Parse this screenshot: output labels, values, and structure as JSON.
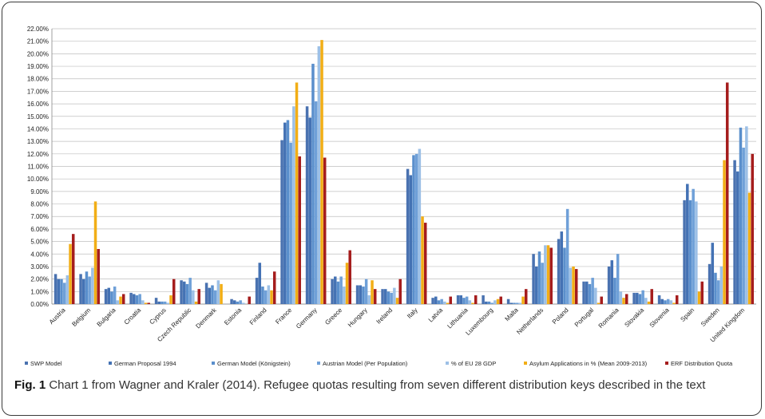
{
  "caption": {
    "label": "Fig. 1",
    "text": "Chart 1 from Wagner and Kraler (2014). Refugee quotas resulting from seven different distribution keys described in the text"
  },
  "colors": {
    "SWP Model": "#4a72b0",
    "German Proposal 1994": "#4472b4",
    "German Model (Königstein)": "#5a8fcc",
    "Austrian Model (Per Population)": "#6fa0d8",
    "% of EU 28 GDP": "#9dc0e6",
    "Asylum Applications in % (Mean 2009-2013)": "#f2ae16",
    "ERF Distribution Quota": "#a51d1d"
  },
  "chart_data": {
    "type": "bar",
    "ylim": [
      0,
      22
    ],
    "yticks": [
      "0.00%",
      "1.00%",
      "2.00%",
      "3.00%",
      "4.00%",
      "5.00%",
      "6.00%",
      "7.00%",
      "8.00%",
      "9.00%",
      "10.00%",
      "11.00%",
      "12.00%",
      "13.00%",
      "14.00%",
      "15.00%",
      "16.00%",
      "17.00%",
      "18.00%",
      "19.00%",
      "20.00%",
      "21.00%",
      "22.00%"
    ],
    "grid": true,
    "legend": "bottom",
    "categories": [
      "Austria",
      "Belgium",
      "Bulgaria",
      "Croatia",
      "Cyprus",
      "Czech Republic",
      "Denmark",
      "Estonia",
      "Finland",
      "France",
      "Germany",
      "Greece",
      "Hungary",
      "Ireland",
      "Italy",
      "Latvia",
      "Lithuania",
      "Luxembourg",
      "Malta",
      "Netherlands",
      "Poland",
      "Portugal",
      "Romania",
      "Slovakia",
      "Slovenia",
      "Spain",
      "Sweden",
      "United Kingdom"
    ],
    "series": [
      {
        "name": "SWP Model",
        "values": [
          2.4,
          2.4,
          1.2,
          0.9,
          0.5,
          1.9,
          1.7,
          0.4,
          2.1,
          13.1,
          15.8,
          2.0,
          1.5,
          1.2,
          10.8,
          0.5,
          0.7,
          0.7,
          0.4,
          4.0,
          5.2,
          1.8,
          3.0,
          0.9,
          0.7,
          8.3,
          3.2,
          11.5
        ]
      },
      {
        "name": "German Proposal 1994",
        "values": [
          2.0,
          2.0,
          1.3,
          0.8,
          0.2,
          1.8,
          1.3,
          0.3,
          3.3,
          14.5,
          14.9,
          2.2,
          1.5,
          1.2,
          10.3,
          0.6,
          0.7,
          0.2,
          0.1,
          3.0,
          5.8,
          1.8,
          3.5,
          0.9,
          0.4,
          9.6,
          4.9,
          10.6
        ]
      },
      {
        "name": "German Model (Königstein)",
        "values": [
          2.0,
          2.6,
          1.0,
          0.7,
          0.2,
          1.6,
          1.5,
          0.2,
          1.4,
          14.7,
          19.2,
          1.8,
          1.4,
          1.0,
          11.9,
          0.3,
          0.5,
          0.2,
          0.1,
          4.2,
          4.5,
          1.6,
          2.1,
          0.8,
          0.3,
          8.3,
          2.5,
          14.1
        ]
      },
      {
        "name": "Austrian Model (Per Population)",
        "values": [
          1.7,
          2.2,
          1.4,
          0.8,
          0.2,
          2.1,
          1.1,
          0.3,
          1.1,
          12.9,
          16.2,
          2.2,
          2.0,
          0.9,
          12.0,
          0.4,
          0.6,
          0.1,
          0.1,
          3.3,
          7.6,
          2.1,
          4.0,
          1.1,
          0.4,
          9.2,
          1.9,
          12.5
        ]
      },
      {
        "name": "% of EU 28 GDP",
        "values": [
          2.3,
          2.9,
          0.3,
          0.3,
          0.1,
          1.1,
          1.9,
          0.1,
          1.5,
          15.8,
          20.6,
          1.4,
          0.7,
          1.3,
          12.4,
          0.2,
          0.3,
          0.3,
          0.1,
          4.7,
          2.9,
          1.3,
          1.0,
          0.5,
          0.3,
          8.2,
          3.0,
          14.2
        ]
      },
      {
        "name": "Asylum Applications in % (Mean 2009-2013)",
        "values": [
          4.8,
          8.2,
          0.6,
          0.1,
          0.7,
          0.2,
          1.6,
          0.0,
          1.1,
          17.7,
          21.1,
          3.3,
          1.9,
          0.5,
          7.0,
          0.1,
          0.1,
          0.4,
          0.6,
          4.7,
          3.0,
          0.1,
          0.5,
          0.2,
          0.1,
          1.0,
          11.5,
          8.9
        ]
      },
      {
        "name": "ERF Distribution Quota",
        "values": [
          5.6,
          4.4,
          0.8,
          0.1,
          2.0,
          1.2,
          0.0,
          0.6,
          2.6,
          11.8,
          11.7,
          4.3,
          1.2,
          2.0,
          6.5,
          0.6,
          0.7,
          0.6,
          1.2,
          4.5,
          2.8,
          0.6,
          0.8,
          1.2,
          0.7,
          1.8,
          17.7,
          12.0
        ]
      }
    ]
  }
}
